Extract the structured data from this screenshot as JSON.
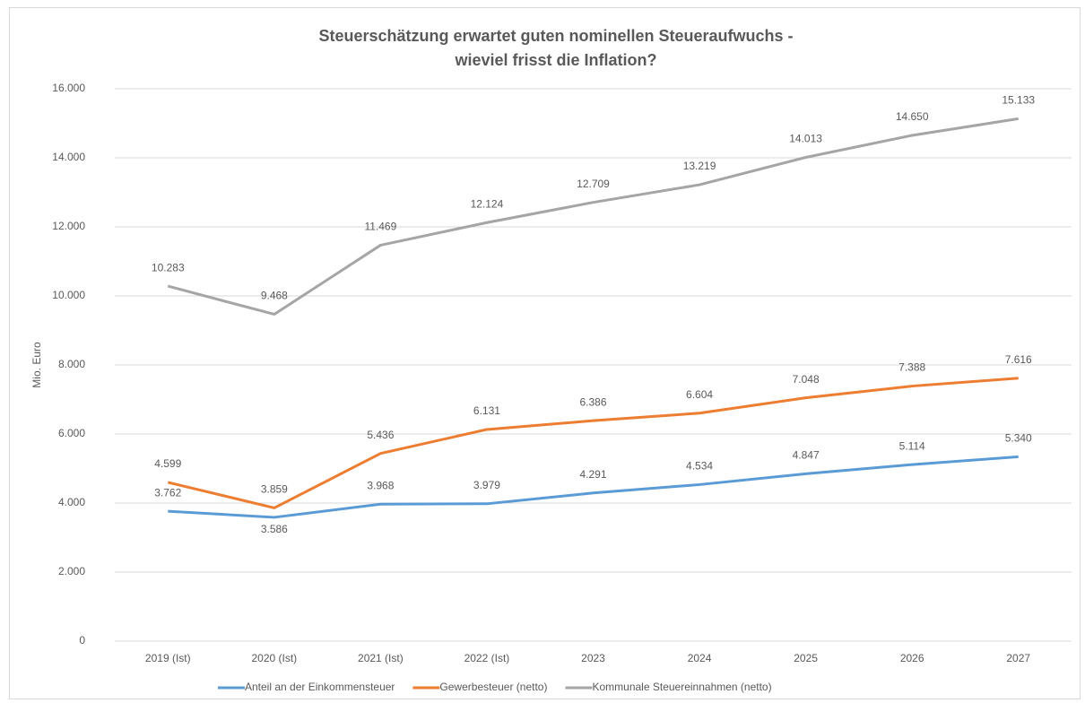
{
  "chart_data": {
    "type": "line",
    "title": [
      "Steuerschätzung erwartet guten nominellen Steueraufwuchs -",
      "wieviel frisst die Inflation?"
    ],
    "y_label": "Mio. Euro",
    "categories": [
      "2019 (Ist)",
      "2020 (Ist)",
      "2021 (Ist)",
      "2022 (Ist)",
      "2023",
      "2024",
      "2025",
      "2026",
      "2027"
    ],
    "series": [
      {
        "name": "Anteil an der Einkommensteuer",
        "color": "#5b9bd5",
        "values": [
          3762,
          3586,
          3968,
          3979,
          4291,
          4534,
          4847,
          5114,
          5340
        ],
        "value_labels": [
          "3.762",
          "3.586",
          "3.968",
          "3.979",
          "4.291",
          "4.534",
          "4.847",
          "5.114",
          "5.340"
        ]
      },
      {
        "name": "Gewerbesteuer (netto)",
        "color": "#ed7d31",
        "values": [
          4599,
          3859,
          5436,
          6131,
          6386,
          6604,
          7048,
          7388,
          7616
        ],
        "value_labels": [
          "4.599",
          "3.859",
          "5.436",
          "6.131",
          "6.386",
          "6.604",
          "7.048",
          "7.388",
          "7.616"
        ]
      },
      {
        "name": "Kommunale Steuereinnahmen (netto)",
        "color": "#a5a5a5",
        "values": [
          10283,
          9468,
          11469,
          12124,
          12709,
          13219,
          14013,
          14650,
          15133
        ],
        "value_labels": [
          "10.283",
          "9.468",
          "11.469",
          "12.124",
          "12.709",
          "13.219",
          "14.013",
          "14.650",
          "15.133"
        ]
      }
    ],
    "ylim": [
      0,
      16000
    ],
    "yticks": [
      0,
      {
        "value": 2000,
        "label": "2.000"
      },
      {
        "value": 4000,
        "label": "4.000"
      },
      {
        "value": 6000,
        "label": "6.000"
      },
      {
        "value": 8000,
        "label": "8.000"
      },
      {
        "value": 10000,
        "label": "10.000"
      },
      {
        "value": 12000,
        "label": "12.000"
      },
      {
        "value": 14000,
        "label": "14.000"
      },
      {
        "value": 16000,
        "label": "16.000"
      }
    ],
    "grid": true,
    "legend": "bottom"
  }
}
